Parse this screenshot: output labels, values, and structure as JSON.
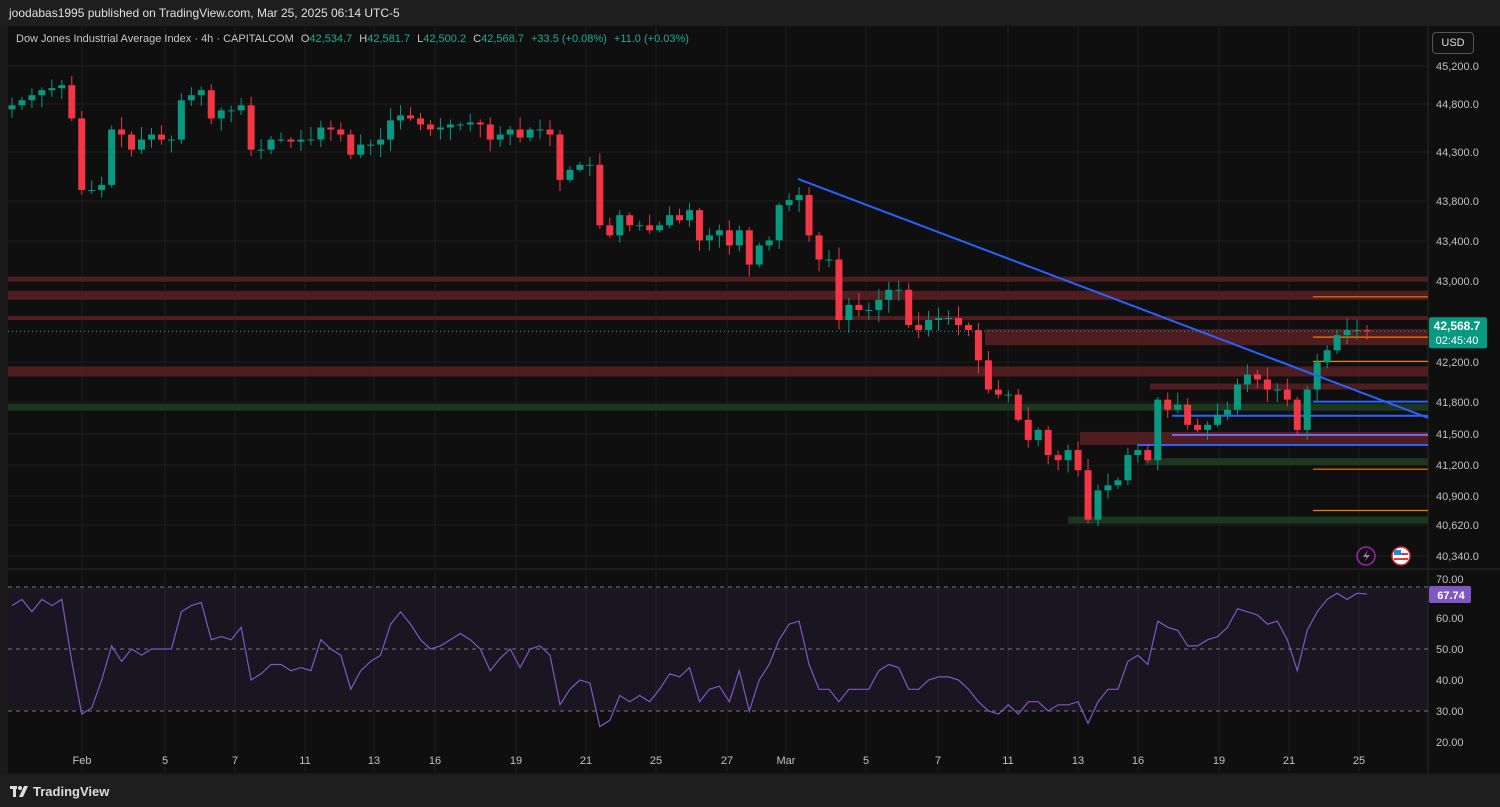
{
  "header": {
    "published": "joodabas1995 published on TradingView.com, Mar 25, 2025 06:14 UTC-5",
    "symbol": "Dow Jones Industrial Average Index · 4h · CAPITALCOM",
    "ohlc": {
      "o_label": "O",
      "o": "42,534.7",
      "h_label": "H",
      "h": "42,581.7",
      "l_label": "L",
      "l": "42,500.2",
      "c_label": "C",
      "c": "42,568.7"
    },
    "change": "+33.5 (+0.08%)",
    "change2": "+11.0 (+0.03%)",
    "currency": "USD"
  },
  "footer": {
    "brand": "TradingView"
  },
  "colors": {
    "up": "#089981",
    "down": "#f23645",
    "trendline": "#2962ff",
    "rsi": "#7e57c2",
    "resistance_zone": "#5a1e22",
    "support_zone": "#1e3d22",
    "level_orange": "#f57c00",
    "level_blue": "#2962ff",
    "level_purple": "#7b68ee",
    "background": "#0f0f0f"
  },
  "chart_data": [
    {
      "type": "candlestick",
      "title": "Dow Jones Industrial Average Index · 4h · CAPITALCOM",
      "x_tick_labels": [
        "Feb",
        "5",
        "7",
        "11",
        "13",
        "16",
        "19",
        "21",
        "25",
        "27",
        "Mar",
        "5",
        "7",
        "11",
        "13",
        "16",
        "19",
        "21",
        "25"
      ],
      "y_tick_labels": [
        "45,200.0",
        "44,800.0",
        "44,300.0",
        "43,800.0",
        "43,400.0",
        "43,000.0",
        "42,200.0",
        "41,800.0",
        "41,500.0",
        "41,200.0",
        "40,900.0",
        "40,620.0",
        "40,340.0"
      ],
      "ylim": [
        40200,
        45400
      ],
      "grid": true,
      "closes": [
        44810,
        44860,
        44910,
        44960,
        44980,
        45010,
        44680,
        43970,
        43970,
        44020,
        44570,
        44520,
        44370,
        44470,
        44520,
        44470,
        44470,
        44860,
        44910,
        44960,
        44680,
        44760,
        44760,
        44810,
        44370,
        44370,
        44470,
        44470,
        44450,
        44470,
        44470,
        44590,
        44570,
        44520,
        44320,
        44420,
        44420,
        44470,
        44660,
        44710,
        44680,
        44620,
        44570,
        44590,
        44620,
        44620,
        44640,
        44620,
        44470,
        44520,
        44570,
        44490,
        44570,
        44570,
        44520,
        44070,
        44170,
        44220,
        44220,
        43620,
        43520,
        43720,
        43620,
        43620,
        43570,
        43620,
        43720,
        43670,
        43770,
        43470,
        43520,
        43570,
        43420,
        43570,
        43230,
        43420,
        43470,
        43820,
        43870,
        43920,
        43520,
        43280,
        43280,
        42680,
        42830,
        42780,
        42780,
        42880,
        42980,
        42980,
        42630,
        42580,
        42680,
        42700,
        42700,
        42630,
        42580,
        42280,
        41990,
        41940,
        41940,
        41690,
        41490,
        41590,
        41340,
        41290,
        41390,
        41190,
        40700,
        40990,
        41040,
        41090,
        41340,
        41390,
        41290,
        41890,
        41790,
        41840,
        41640,
        41590,
        41640,
        41740,
        41790,
        42040,
        42140,
        42090,
        41990,
        41990,
        41890,
        41590,
        41990,
        42260,
        42380,
        42530,
        42580,
        42580,
        42568.7
      ],
      "last_price": "42,568.7",
      "countdown": "02:45:40",
      "trendline": {
        "from": {
          "date": "Mar 1",
          "price": 44080
        },
        "to": {
          "date": "Mar 25",
          "price": 41710
        }
      },
      "zones": [
        {
          "kind": "resistance",
          "low": 43060,
          "high": 43110,
          "extent": "full"
        },
        {
          "kind": "resistance",
          "low": 42880,
          "high": 42970,
          "extent": "full"
        },
        {
          "kind": "resistance",
          "low": 42680,
          "high": 42720,
          "extent": "full"
        },
        {
          "kind": "resistance",
          "low": 42430,
          "high": 42590,
          "extent": "from Mar 10"
        },
        {
          "kind": "resistance",
          "low": 42120,
          "high": 42220,
          "extent": "full"
        },
        {
          "kind": "resistance",
          "low": 41990,
          "high": 42050,
          "extent": "from Mar 17"
        },
        {
          "kind": "resistance",
          "low": 41440,
          "high": 41570,
          "extent": "from Mar 14"
        },
        {
          "kind": "support",
          "low": 41780,
          "high": 41850,
          "extent": "full"
        },
        {
          "kind": "support",
          "low": 41240,
          "high": 41310,
          "extent": "from Mar 16"
        },
        {
          "kind": "support",
          "low": 40660,
          "high": 40730,
          "extent": "from Mar 13"
        }
      ],
      "levels": [
        {
          "color": "orange",
          "price": 42910
        },
        {
          "color": "orange",
          "price": 42510
        },
        {
          "color": "orange",
          "price": 42270
        },
        {
          "color": "orange",
          "price": 41200
        },
        {
          "color": "orange",
          "price": 40790
        },
        {
          "color": "blue",
          "price": 41870
        },
        {
          "color": "blue",
          "price": 41730
        },
        {
          "color": "blue",
          "price": 41440
        },
        {
          "color": "purple",
          "price": 41540
        }
      ]
    },
    {
      "type": "line",
      "name": "RSI",
      "y_tick_labels": [
        "70.00",
        "60.00",
        "50.00",
        "40.00",
        "30.00",
        "20.00"
      ],
      "ylim": [
        17,
        72
      ],
      "bands": [
        30,
        50,
        70
      ],
      "last_value": "67.74",
      "values": [
        64,
        66,
        62,
        66,
        64,
        66,
        46,
        29,
        31,
        40,
        51,
        46,
        50,
        48,
        50,
        50,
        50,
        62,
        64,
        65,
        53,
        54,
        53,
        57,
        40,
        42,
        45,
        45,
        43,
        44,
        43,
        53,
        50,
        48,
        37,
        43,
        46,
        48,
        58,
        62,
        58,
        53,
        50,
        51,
        53,
        55,
        53,
        50,
        43,
        47,
        50,
        44,
        50,
        51,
        48,
        32,
        37,
        40,
        39,
        25,
        27,
        35,
        33,
        35,
        33,
        37,
        42,
        41,
        44,
        33,
        37,
        38,
        33,
        43,
        30,
        40,
        45,
        53,
        58,
        59,
        45,
        37,
        37,
        33,
        37,
        37,
        37,
        43,
        45,
        44,
        37,
        37,
        40,
        41,
        41,
        40,
        37,
        33,
        30,
        29,
        32,
        29,
        33,
        33,
        30,
        32,
        32,
        33,
        26,
        33,
        37,
        37,
        46,
        48,
        45,
        59,
        57,
        56,
        51,
        51,
        53,
        54,
        57,
        63,
        62,
        61,
        58,
        59,
        53,
        43,
        56,
        62,
        66,
        68,
        66,
        68,
        67.74
      ]
    }
  ]
}
